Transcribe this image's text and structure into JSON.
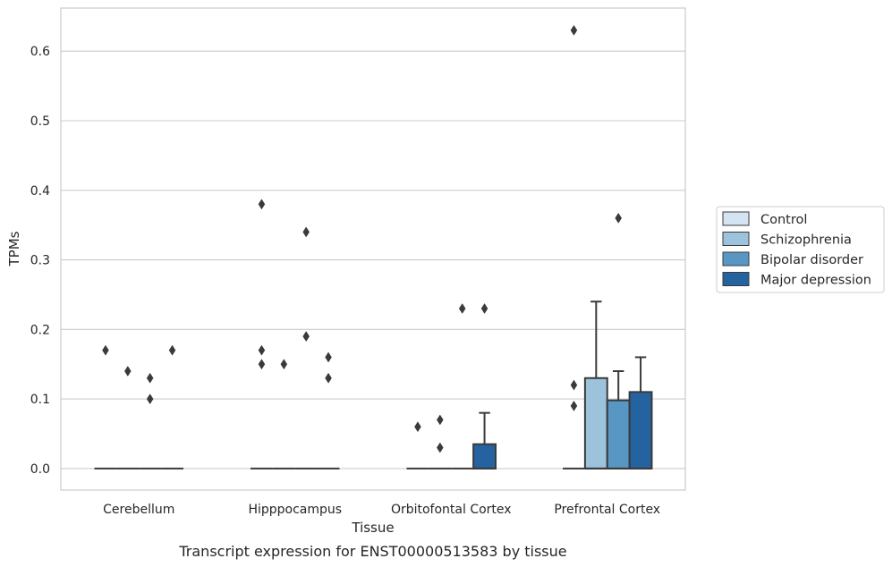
{
  "chart_data": {
    "type": "box",
    "caption": "Transcript expression for ENST00000513583 by tissue",
    "xlabel": "Tissue",
    "ylabel": "TPMs",
    "ylim": [
      -0.031,
      0.662
    ],
    "yticks": [
      0.0,
      0.1,
      0.2,
      0.3,
      0.4,
      0.5,
      0.6
    ],
    "ytick_labels": [
      "0.0",
      "0.1",
      "0.2",
      "0.3",
      "0.4",
      "0.5",
      "0.6"
    ],
    "grid": "horizontal",
    "legend_position": "right, outside plot",
    "categories": [
      "Cerebellum",
      "Hipppocampus",
      "Orbitofontal Cortex",
      "Prefrontal Cortex"
    ],
    "series": [
      {
        "name": "Control",
        "color": "#d4e4f3",
        "boxes": [
          {
            "q1": 0,
            "median": 0,
            "q3": 0,
            "whisker_low": 0,
            "whisker_high": 0,
            "outliers": [
              0.17
            ]
          },
          {
            "q1": 0,
            "median": 0,
            "q3": 0,
            "whisker_low": 0,
            "whisker_high": 0,
            "outliers": [
              0.38,
              0.17,
              0.15
            ]
          },
          {
            "q1": 0,
            "median": 0,
            "q3": 0,
            "whisker_low": 0,
            "whisker_high": 0,
            "outliers": [
              0.06
            ]
          },
          {
            "q1": 0,
            "median": 0,
            "q3": 0,
            "whisker_low": 0,
            "whisker_high": 0,
            "outliers": [
              0.63,
              0.12,
              0.09
            ]
          }
        ]
      },
      {
        "name": "Schizophrenia",
        "color": "#9cc2dc",
        "boxes": [
          {
            "q1": 0,
            "median": 0,
            "q3": 0,
            "whisker_low": 0,
            "whisker_high": 0,
            "outliers": [
              0.14
            ]
          },
          {
            "q1": 0,
            "median": 0,
            "q3": 0,
            "whisker_low": 0,
            "whisker_high": 0,
            "outliers": [
              0.15
            ]
          },
          {
            "q1": 0,
            "median": 0,
            "q3": 0,
            "whisker_low": 0,
            "whisker_high": 0,
            "outliers": [
              0.07,
              0.03
            ]
          },
          {
            "q1": 0,
            "median": 0,
            "q3": 0.13,
            "whisker_low": 0,
            "whisker_high": 0.24,
            "outliers": []
          }
        ]
      },
      {
        "name": "Bipolar disorder",
        "color": "#5897c4",
        "boxes": [
          {
            "q1": 0,
            "median": 0,
            "q3": 0,
            "whisker_low": 0,
            "whisker_high": 0,
            "outliers": [
              0.13,
              0.1
            ]
          },
          {
            "q1": 0,
            "median": 0,
            "q3": 0,
            "whisker_low": 0,
            "whisker_high": 0,
            "outliers": [
              0.34,
              0.19
            ]
          },
          {
            "q1": 0,
            "median": 0,
            "q3": 0,
            "whisker_low": 0,
            "whisker_high": 0,
            "outliers": [
              0.23
            ]
          },
          {
            "q1": 0,
            "median": 0,
            "q3": 0.098,
            "whisker_low": 0,
            "whisker_high": 0.14,
            "outliers": [
              0.36
            ]
          }
        ]
      },
      {
        "name": "Major depression",
        "color": "#2563a0",
        "boxes": [
          {
            "q1": 0,
            "median": 0,
            "q3": 0,
            "whisker_low": 0,
            "whisker_high": 0,
            "outliers": [
              0.17
            ]
          },
          {
            "q1": 0,
            "median": 0,
            "q3": 0,
            "whisker_low": 0,
            "whisker_high": 0,
            "outliers": [
              0.16,
              0.13
            ]
          },
          {
            "q1": 0,
            "median": 0,
            "q3": 0.035,
            "whisker_low": 0,
            "whisker_high": 0.08,
            "outliers": [
              0.23
            ]
          },
          {
            "q1": 0,
            "median": 0,
            "q3": 0.11,
            "whisker_low": 0,
            "whisker_high": 0.16,
            "outliers": []
          }
        ]
      }
    ]
  }
}
